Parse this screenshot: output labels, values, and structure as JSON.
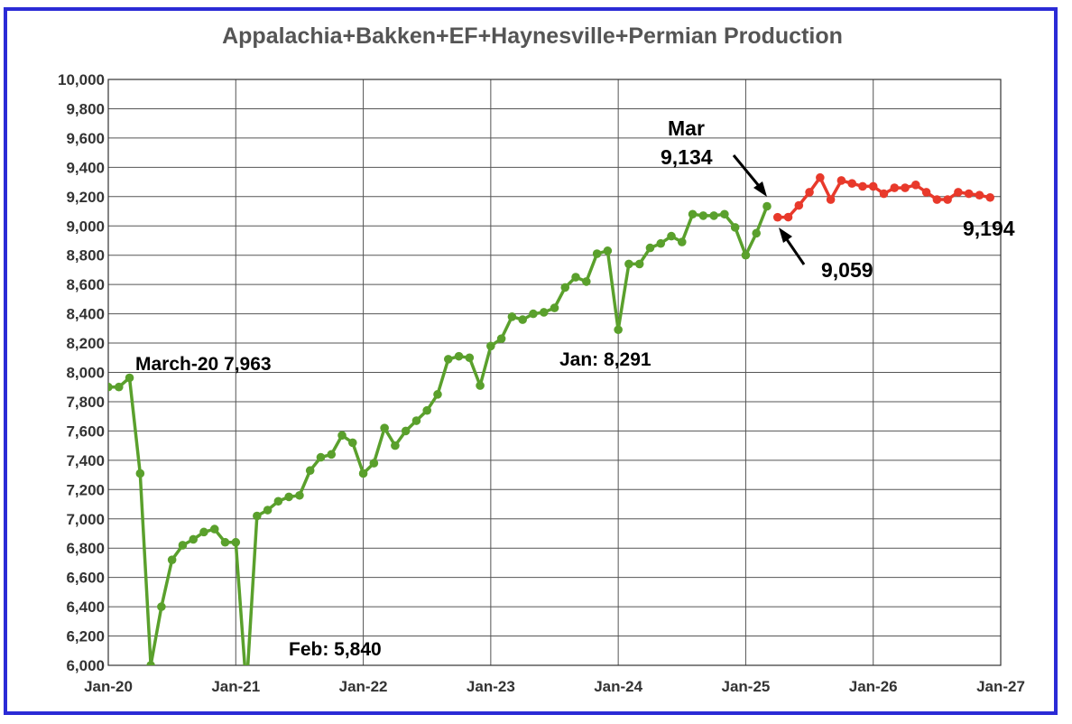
{
  "chart_data": {
    "type": "line",
    "title": "Appalachia+Bakken+EF+Haynesville+Permian Production",
    "xlabel": "",
    "ylabel": "",
    "ylim": [
      6000,
      10000
    ],
    "y_ticks": [
      6000,
      6200,
      6400,
      6600,
      6800,
      7000,
      7200,
      7400,
      7600,
      7800,
      8000,
      8200,
      8400,
      8600,
      8800,
      9000,
      9200,
      9400,
      9600,
      9800,
      10000
    ],
    "y_tick_labels": [
      "6,000",
      "6,200",
      "6,400",
      "6,600",
      "6,800",
      "7,000",
      "7,200",
      "7,400",
      "7,600",
      "7,800",
      "8,000",
      "8,200",
      "8,400",
      "8,600",
      "8,800",
      "9,000",
      "9,200",
      "9,400",
      "9,600",
      "9,800",
      "10,000"
    ],
    "x_tick_labels": [
      "Jan-20",
      "Jan-21",
      "Jan-22",
      "Jan-23",
      "Jan-24",
      "Jan-25",
      "Jan-26",
      "Jan-27"
    ],
    "grid": true,
    "legend": "none",
    "series": [
      {
        "color": "#5aa02c",
        "x_start": "Jan-20",
        "values": [
          7900,
          7900,
          7963,
          7310,
          6000,
          6400,
          6720,
          6820,
          6860,
          6910,
          6930,
          6840,
          6840,
          5840,
          7020,
          7060,
          7120,
          7150,
          7160,
          7330,
          7420,
          7440,
          7570,
          7520,
          7310,
          7380,
          7620,
          7500,
          7600,
          7670,
          7740,
          7850,
          8090,
          8110,
          8100,
          7910,
          8180,
          8230,
          8380,
          8360,
          8400,
          8410,
          8440,
          8580,
          8650,
          8620,
          8810,
          8830,
          8291,
          8740,
          8740,
          8850,
          8880,
          8930,
          8890,
          9080,
          9070,
          9070,
          9080,
          8990,
          8800,
          8950,
          9134
        ]
      },
      {
        "color": "#e8392b",
        "x_start": "Apr-25",
        "values": [
          9059,
          9060,
          9140,
          9230,
          9330,
          9180,
          9310,
          9290,
          9270,
          9270,
          9220,
          9260,
          9260,
          9280,
          9230,
          9180,
          9180,
          9230,
          9220,
          9210,
          9194
        ]
      }
    ],
    "annotations": {
      "march20": "March-20 7,963",
      "feb": "Feb: 5,840",
      "jan": "Jan: 8,291",
      "mar_label": "Mar",
      "mar_value": "9,134",
      "apr_value": "9,059",
      "end_value": "9,194"
    },
    "colors": {
      "frame": "#2b2bd6",
      "grid": "#555555",
      "actual": "#5aa02c",
      "forecast": "#e8392b"
    }
  }
}
